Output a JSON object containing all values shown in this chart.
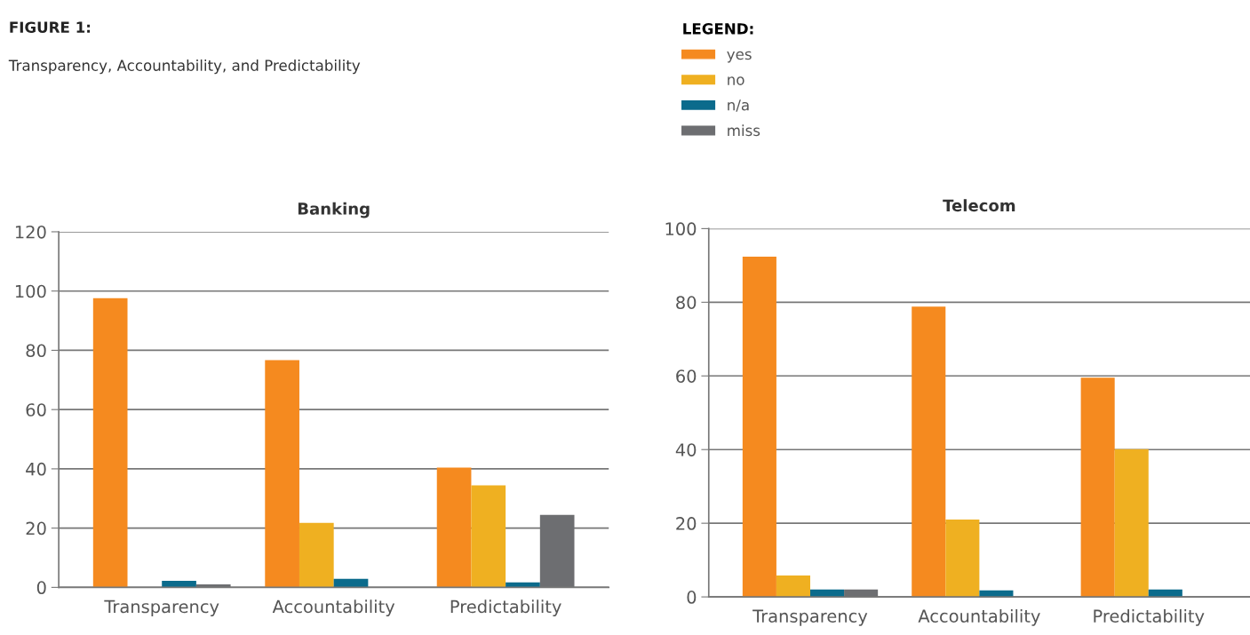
{
  "chart_data": [
    {
      "type": "bar",
      "title": "Banking",
      "annotations": [
        "FIGURE 1:",
        "Transparency, Accountability, and Predictability"
      ],
      "legend_title": "LEGEND:",
      "legend": "top right",
      "categories": [
        "Transparency",
        "Accountability",
        "Predictability"
      ],
      "series": [
        {
          "name": "yes",
          "color": "#f58a1f",
          "values": [
            97.6,
            76.7,
            40.4
          ]
        },
        {
          "name": "no",
          "color": "#efb021",
          "values": [
            0,
            21.8,
            34.4
          ]
        },
        {
          "name": "n/a",
          "color": "#0b6b8c",
          "values": [
            2.2,
            2.9,
            1.7
          ]
        },
        {
          "name": "miss",
          "color": "#6d6e71",
          "values": [
            1.0,
            0,
            24.5
          ]
        }
      ],
      "ylim": [
        0,
        120
      ],
      "yticks": [
        0,
        20,
        40,
        60,
        80,
        100,
        120
      ],
      "grid": "y"
    },
    {
      "type": "bar",
      "title": "Telecom",
      "categories": [
        "Transparency",
        "Accountability",
        "Predictability"
      ],
      "series": [
        {
          "color": "#f58a1f",
          "values": [
            92.4,
            78.8,
            59.5
          ]
        },
        {
          "color": "#efb021",
          "values": [
            5.8,
            21.0,
            40.1
          ]
        },
        {
          "color": "#0b6b8c",
          "values": [
            2.0,
            1.8,
            2.0
          ]
        },
        {
          "color": "#6d6e71",
          "values": [
            2.0,
            0,
            0
          ]
        }
      ],
      "ylim": [
        0,
        100
      ],
      "yticks": [
        0,
        20,
        40,
        60,
        80,
        100
      ],
      "grid": "y"
    }
  ]
}
